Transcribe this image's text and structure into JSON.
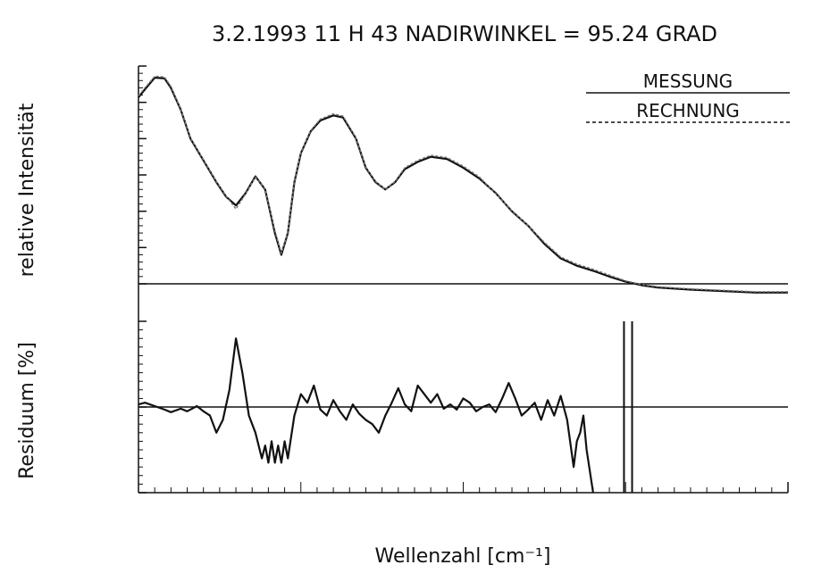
{
  "title": "3.2.1993   11 H 43   NADIRWINKEL = 95.24 GRAD",
  "legend": {
    "measured": "MESSUNG",
    "computed": "RECHNUNG"
  },
  "colors": {
    "ink": "#111111",
    "computed": "#777777"
  },
  "chart_data": [
    {
      "type": "line",
      "panel": "top",
      "ylabel": "relative Intensität",
      "xlim": [
        2976,
        2978
      ],
      "ylim": [
        0.0,
        0.3
      ],
      "yticks": [
        "0.30",
        "0.25",
        "0.20",
        "0.15",
        "0.10",
        "0.05",
        "0.00"
      ],
      "legend_position": "top-right",
      "series": [
        {
          "name": "MESSUNG",
          "style": "solid",
          "x": [
            2976.0,
            2976.02,
            2976.05,
            2976.08,
            2976.1,
            2976.13,
            2976.16,
            2976.2,
            2976.24,
            2976.27,
            2976.3,
            2976.33,
            2976.36,
            2976.39,
            2976.42,
            2976.44,
            2976.46,
            2976.48,
            2976.5,
            2976.53,
            2976.56,
            2976.6,
            2976.63,
            2976.67,
            2976.7,
            2976.73,
            2976.76,
            2976.79,
            2976.82,
            2976.86,
            2976.9,
            2976.95,
            2977.0,
            2977.05,
            2977.1,
            2977.15,
            2977.2,
            2977.25,
            2977.3,
            2977.35,
            2977.4,
            2977.45,
            2977.5,
            2977.55,
            2977.6,
            2977.7,
            2977.8,
            2977.9,
            2978.0
          ],
          "values": [
            0.257,
            0.268,
            0.284,
            0.283,
            0.27,
            0.24,
            0.2,
            0.17,
            0.14,
            0.12,
            0.108,
            0.125,
            0.148,
            0.13,
            0.07,
            0.04,
            0.07,
            0.14,
            0.18,
            0.21,
            0.225,
            0.232,
            0.229,
            0.2,
            0.16,
            0.14,
            0.13,
            0.14,
            0.158,
            0.168,
            0.175,
            0.172,
            0.16,
            0.145,
            0.125,
            0.1,
            0.08,
            0.055,
            0.035,
            0.025,
            0.018,
            0.01,
            0.003,
            -0.002,
            -0.005,
            -0.008,
            -0.01,
            -0.012,
            -0.012
          ]
        },
        {
          "name": "RECHNUNG",
          "style": "dashed",
          "x": [
            2976.0,
            2976.02,
            2976.05,
            2976.08,
            2976.1,
            2976.13,
            2976.16,
            2976.2,
            2976.24,
            2976.27,
            2976.3,
            2976.33,
            2976.36,
            2976.39,
            2976.42,
            2976.44,
            2976.46,
            2976.48,
            2976.5,
            2976.53,
            2976.56,
            2976.6,
            2976.63,
            2976.67,
            2976.7,
            2976.73,
            2976.76,
            2976.79,
            2976.82,
            2976.86,
            2976.9,
            2976.95,
            2977.0,
            2977.05,
            2977.1,
            2977.15,
            2977.2,
            2977.25,
            2977.3,
            2977.35,
            2977.4,
            2977.45,
            2977.5,
            2977.55,
            2977.6,
            2977.7,
            2977.8,
            2977.9,
            2978.0
          ],
          "values": [
            0.259,
            0.27,
            0.286,
            0.285,
            0.272,
            0.241,
            0.201,
            0.171,
            0.141,
            0.121,
            0.103,
            0.124,
            0.147,
            0.131,
            0.073,
            0.042,
            0.071,
            0.141,
            0.181,
            0.211,
            0.227,
            0.234,
            0.231,
            0.201,
            0.161,
            0.141,
            0.13,
            0.141,
            0.16,
            0.17,
            0.177,
            0.174,
            0.162,
            0.147,
            0.124,
            0.101,
            0.08,
            0.057,
            0.037,
            0.027,
            0.02,
            0.012,
            0.004,
            -0.001,
            -0.004,
            -0.007,
            -0.009,
            -0.011,
            -0.011
          ]
        }
      ]
    },
    {
      "type": "line",
      "panel": "bottom",
      "ylabel": "Residuum [%]",
      "xlabel": "Wellenzahl [cm⁻¹]",
      "xlim": [
        2976,
        2978
      ],
      "ylim": [
        -10.0,
        10.0
      ],
      "yticks": [
        "−0.05",
        "0.0",
        "−10.0"
      ],
      "xticks": [
        "2976",
        "2976.5",
        "2977",
        "2977.5",
        "2978"
      ],
      "series": [
        {
          "name": "Residuum",
          "x": [
            2976.0,
            2976.02,
            2976.05,
            2976.08,
            2976.1,
            2976.13,
            2976.15,
            2976.18,
            2976.2,
            2976.22,
            2976.24,
            2976.26,
            2976.28,
            2976.3,
            2976.32,
            2976.34,
            2976.36,
            2976.38,
            2976.39,
            2976.4,
            2976.41,
            2976.42,
            2976.43,
            2976.44,
            2976.45,
            2976.46,
            2976.48,
            2976.5,
            2976.52,
            2976.54,
            2976.56,
            2976.58,
            2976.6,
            2976.62,
            2976.64,
            2976.66,
            2976.68,
            2976.7,
            2976.72,
            2976.74,
            2976.76,
            2976.78,
            2976.8,
            2976.82,
            2976.84,
            2976.86,
            2976.88,
            2976.9,
            2976.92,
            2976.94,
            2976.96,
            2976.98,
            2977.0,
            2977.02,
            2977.04,
            2977.06,
            2977.08,
            2977.1,
            2977.12,
            2977.14,
            2977.16,
            2977.18,
            2977.2,
            2977.22,
            2977.24,
            2977.26,
            2977.28,
            2977.3,
            2977.32,
            2977.34,
            2977.35,
            2977.36,
            2977.37,
            2977.38,
            2977.4
          ],
          "values": [
            0.3,
            0.5,
            0.1,
            -0.3,
            -0.6,
            -0.2,
            -0.5,
            0.1,
            -0.5,
            -1.0,
            -3.0,
            -1.5,
            2.0,
            8.0,
            4.0,
            -1.0,
            -3.0,
            -6.0,
            -4.5,
            -6.5,
            -4.0,
            -6.5,
            -4.5,
            -6.5,
            -4.0,
            -6.0,
            -1.0,
            1.5,
            0.5,
            2.5,
            -0.3,
            -1.0,
            0.8,
            -0.5,
            -1.5,
            0.3,
            -0.8,
            -1.5,
            -2.0,
            -3.0,
            -1.0,
            0.5,
            2.2,
            0.3,
            -0.5,
            2.5,
            1.5,
            0.5,
            1.5,
            -0.2,
            0.3,
            -0.3,
            1.0,
            0.5,
            -0.5,
            0.0,
            0.3,
            -0.6,
            1.0,
            2.8,
            1.0,
            -1.0,
            -0.3,
            0.5,
            -1.5,
            0.8,
            -1.0,
            1.3,
            -1.5,
            -7.0,
            -4.0,
            -3.0,
            -1.0,
            -5.0,
            -10.0
          ]
        }
      ],
      "spikes_x": [
        2977.495,
        2977.52
      ]
    }
  ]
}
